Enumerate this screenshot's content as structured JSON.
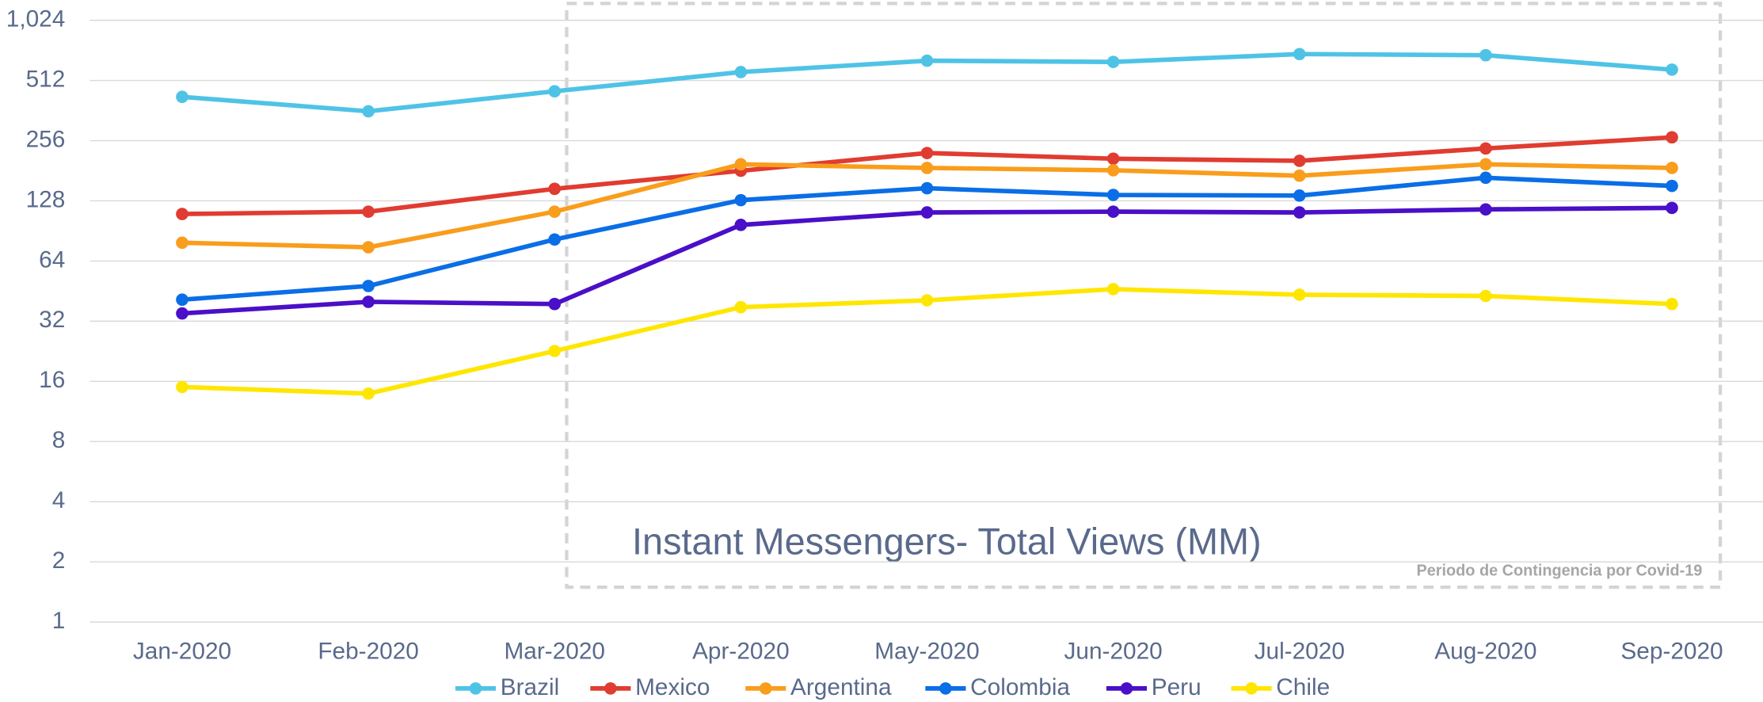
{
  "chart_data": {
    "type": "line",
    "title": "Instant Messengers- Total Views (MM)",
    "annotation": "Periodo de Contingencia por Covid-19",
    "categories": [
      "Jan-2020",
      "Feb-2020",
      "Mar-2020",
      "Apr-2020",
      "May-2020",
      "Jun-2020",
      "Jul-2020",
      "Aug-2020",
      "Sep-2020"
    ],
    "series": [
      {
        "name": "Brazil",
        "color": "#4fc3e6",
        "values": [
          424,
          359,
          452,
          564,
          643,
          634,
          694,
          685,
          580
        ]
      },
      {
        "name": "Mexico",
        "color": "#e03c31",
        "values": [
          110,
          113,
          147,
          181,
          222,
          208,
          203,
          234,
          266
        ]
      },
      {
        "name": "Argentina",
        "color": "#f99d1c",
        "values": [
          79,
          75,
          113,
          195,
          187,
          182,
          171,
          195,
          187
        ]
      },
      {
        "name": "Colombia",
        "color": "#0a6ee6",
        "values": [
          41,
          48,
          82,
          129,
          148,
          137,
          136,
          167,
          152
        ]
      },
      {
        "name": "Peru",
        "color": "#4a0fc8",
        "values": [
          35,
          40,
          39,
          97,
          112,
          113,
          112,
          116,
          118
        ]
      },
      {
        "name": "Chile",
        "color": "#ffe600",
        "values": [
          15,
          13.9,
          22.7,
          37.6,
          40.7,
          46.3,
          43.4,
          42.8,
          39
        ]
      }
    ],
    "yscale": "log",
    "ylim": [
      1,
      1024
    ],
    "yticks": [
      1,
      2,
      4,
      8,
      16,
      32,
      64,
      128,
      256,
      512,
      {
        "value": 1024,
        "label": "1,024"
      }
    ],
    "grid": true,
    "legend": "bottom"
  }
}
